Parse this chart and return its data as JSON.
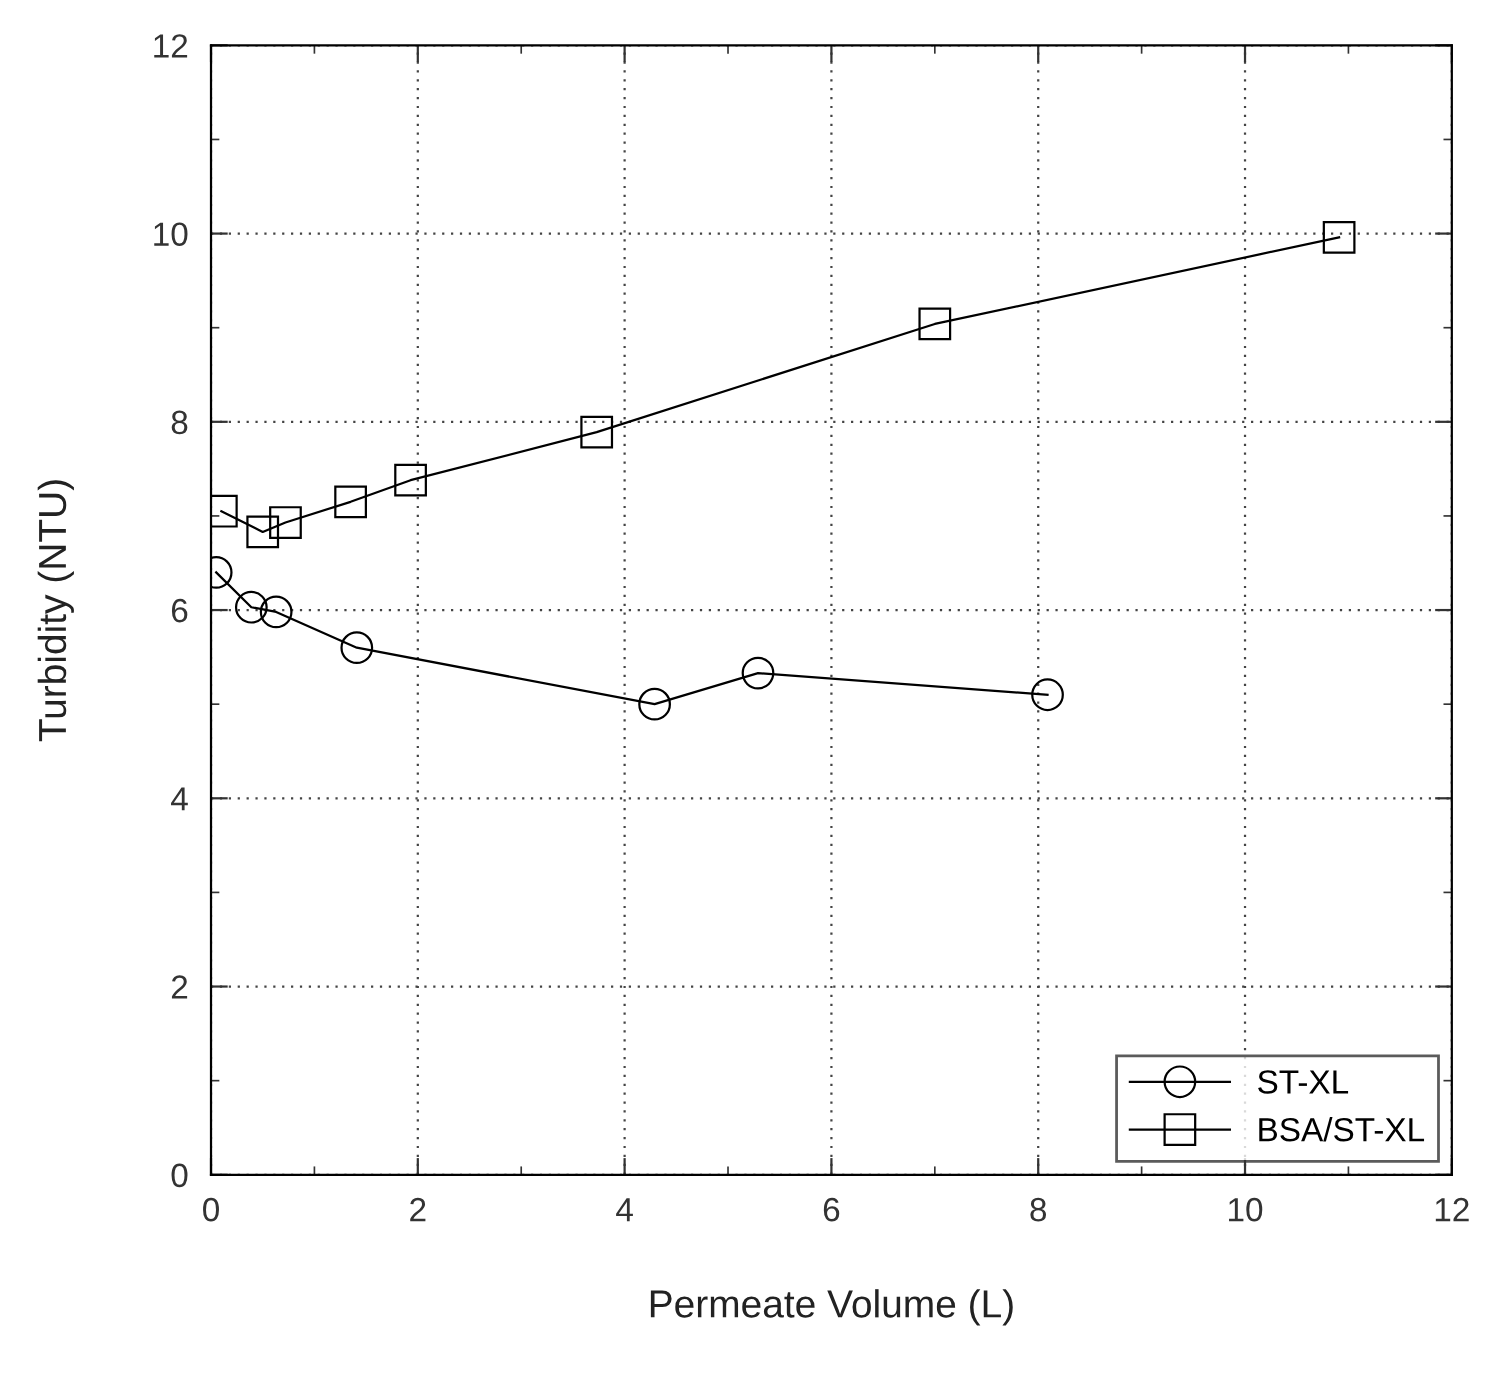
{
  "chart_data": {
    "type": "line",
    "xlabel": "Permeate Volume (L)",
    "ylabel": "Turbidity (NTU)",
    "xlim": [
      0,
      12
    ],
    "ylim": [
      0,
      12
    ],
    "xticks": [
      0,
      2,
      4,
      6,
      8,
      10,
      12
    ],
    "yticks": [
      0,
      2,
      4,
      6,
      8,
      10,
      12
    ],
    "grid": true,
    "legend": "bottom right",
    "series": [
      {
        "name": "ST-XL",
        "color": "#000000",
        "marker": "circle",
        "x": [
          0.05,
          0.39,
          0.63,
          1.41,
          4.29,
          5.29,
          8.09
        ],
        "values": [
          6.4,
          6.03,
          5.98,
          5.6,
          5.0,
          5.33,
          5.1
        ]
      },
      {
        "name": "BSA/ST-XL",
        "color": "#000000",
        "marker": "square",
        "x": [
          0.1,
          0.5,
          0.72,
          1.35,
          1.93,
          3.73,
          7.0,
          10.91
        ],
        "values": [
          7.05,
          6.83,
          6.93,
          7.15,
          7.38,
          7.89,
          9.04,
          9.96
        ]
      }
    ]
  }
}
